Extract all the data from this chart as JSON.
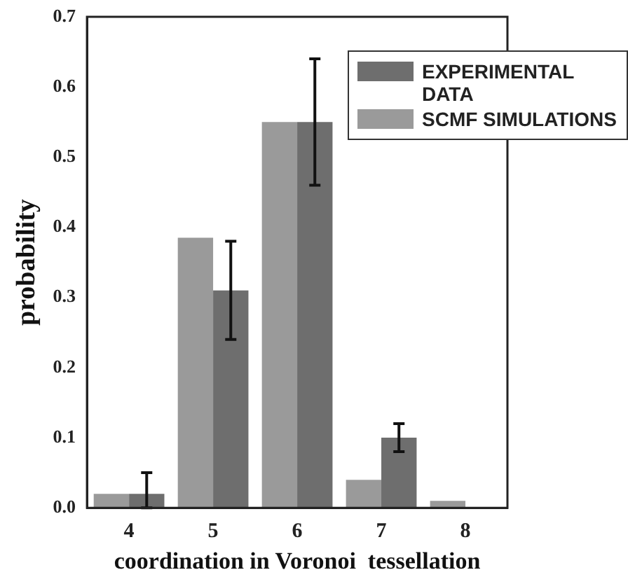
{
  "chart_data": {
    "type": "bar",
    "xlabel": "coordination in Voronoi  tessellation",
    "ylabel": "probability",
    "categories": [
      "4",
      "5",
      "6",
      "7",
      "8"
    ],
    "series": [
      {
        "name": "SCMF SIMULATIONS",
        "color": "#9a9a9a",
        "values": [
          0.02,
          0.385,
          0.55,
          0.04,
          0.01
        ]
      },
      {
        "name": "EXPERIMENTAL DATA",
        "color": "#6e6e6e",
        "values": [
          0.02,
          0.31,
          0.55,
          0.1,
          null
        ],
        "errors": [
          [
            0.0,
            0.05
          ],
          [
            0.24,
            0.38
          ],
          [
            0.46,
            0.64
          ],
          [
            0.08,
            0.12
          ],
          null
        ]
      }
    ],
    "ylim": [
      0,
      0.7
    ],
    "yticks": [
      {
        "value": 0,
        "label": "0.0"
      },
      0.1,
      0.2,
      0.3,
      0.4,
      0.5,
      0.6,
      0.7
    ],
    "legend": "top right"
  }
}
